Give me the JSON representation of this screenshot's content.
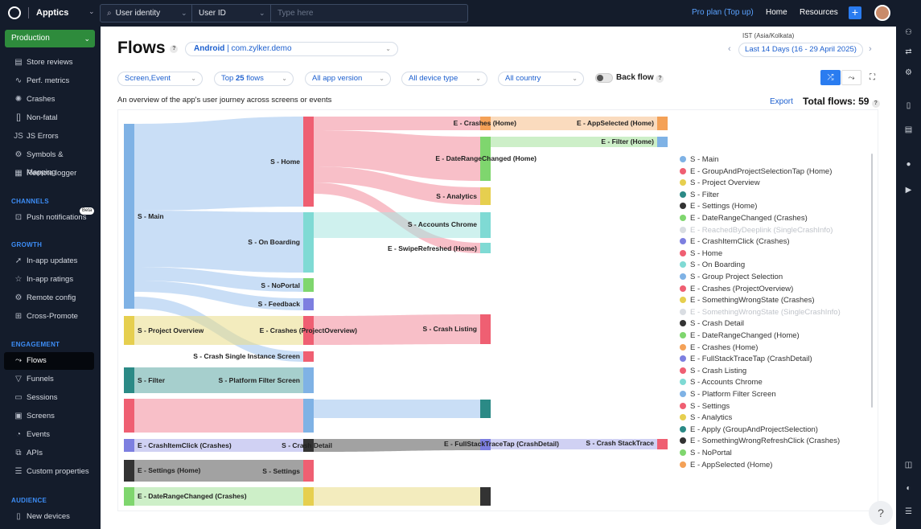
{
  "topbar": {
    "app_name": "Apptics",
    "search": {
      "filter1": "User identity",
      "filter2": "User ID",
      "placeholder": "Type here"
    },
    "plan_label": "Pro plan",
    "top_up": "Top up",
    "nav_home": "Home",
    "nav_resources": "Resources"
  },
  "sidebar": {
    "environment": "Production",
    "items_top": [
      {
        "label": "Store reviews",
        "icon": "store-icon"
      },
      {
        "label": "Perf. metrics",
        "icon": "perf-icon"
      },
      {
        "label": "Crashes",
        "icon": "crash-icon"
      },
      {
        "label": "Non-fatal",
        "icon": "nonfatal-icon"
      },
      {
        "label": "JS Errors",
        "icon": "js-icon"
      },
      {
        "label": "Symbols & Mapping",
        "icon": "symbols-icon"
      },
      {
        "label": "Remote logger",
        "icon": "logger-icon"
      }
    ],
    "channels_header": "CHANNELS",
    "push_label": "Push notifications",
    "beta": "Beta",
    "growth_header": "GROWTH",
    "growth_items": [
      "In-app updates",
      "In-app ratings",
      "Remote config",
      "Cross-Promote"
    ],
    "engagement_header": "ENGAGEMENT",
    "engagement_items": [
      "Flows",
      "Funnels",
      "Sessions",
      "Screens",
      "Events",
      "APIs",
      "Custom properties"
    ],
    "audience_header": "AUDIENCE",
    "audience_items": [
      "New devices"
    ]
  },
  "main": {
    "title": "Flows",
    "app_selector": {
      "platform": "Android",
      "bundle": "com.zylker.demo"
    },
    "timezone": "IST (Asia/Kolkata)",
    "date_range": "Last 14 Days (16 - 29 April 2025)",
    "filters": {
      "type": "Screen,Event",
      "top_prefix": "Top",
      "top_count": "25",
      "top_suffix": "flows",
      "app_version": "All app version",
      "device_type": "All device type",
      "country": "All country"
    },
    "back_flow": "Back flow",
    "caption": "An overview of the app's user journey across screens or events",
    "export": "Export",
    "total_flows": "Total flows: 59"
  },
  "colors": {
    "accent": "#1c5fcf",
    "primary_button": "#2a7cf0",
    "production": "#2e8b3c",
    "sidebar_bg": "#141c2b"
  },
  "sankey_labels": {
    "main": "S - Main",
    "project_overview": "S - Project Overview",
    "filter": "S - Filter",
    "crash_item_click": "E - CrashItemClick (Crashes)",
    "settings_home": "E - Settings (Home)",
    "date_range_crashes": "E - DateRangeChanged (Crashes)",
    "home": "S - Home",
    "on_boarding": "S - On Boarding",
    "no_portal": "S - NoPortal",
    "feedback": "S - Feedback",
    "crashes_project_overview": "E - Crashes (ProjectOverview)",
    "crash_single": "S - Crash Single Instance Screen",
    "platform_filter": "S - Platform Filter Screen",
    "crash_detail": "S - Crash Detail",
    "settings": "S - Settings",
    "crashes_home": "E - Crashes (Home)",
    "date_range_home": "E - DateRangeChanged (Home)",
    "analytics": "S - Analytics",
    "accounts_chrome": "S - Accounts Chrome",
    "swipe_refreshed": "E - SwipeRefreshed (Home)",
    "crash_listing": "S - Crash Listing",
    "full_stack": "E - FullStackTraceTap (CrashDetail)",
    "app_selected": "E - AppSelected (Home)",
    "filter_home": "E - Filter (Home)",
    "crash_stacktrace": "S - Crash StackTrace"
  },
  "legend": [
    {
      "label": "S - Main",
      "color": "#7fb2e5"
    },
    {
      "label": "E - GroupAndProjectSelectionTap (Home)",
      "color": "#ef5f72"
    },
    {
      "label": "S - Project Overview",
      "color": "#e6cf4f"
    },
    {
      "label": "S - Filter",
      "color": "#2b8a86"
    },
    {
      "label": "E - Settings (Home)",
      "color": "#333333"
    },
    {
      "label": "E - DateRangeChanged (Crashes)",
      "color": "#7fd66e"
    },
    {
      "label": "E - ReachedByDeeplink (SingleCrashInfo)",
      "color": "#a4e29b",
      "dim": true
    },
    {
      "label": "E - CrashItemClick (Crashes)",
      "color": "#7d7fe0"
    },
    {
      "label": "S - Home",
      "color": "#ef5f72"
    },
    {
      "label": "S - On Boarding",
      "color": "#7fdad4"
    },
    {
      "label": "S - Group Project Selection",
      "color": "#7fb2e5"
    },
    {
      "label": "E - Crashes (ProjectOverview)",
      "color": "#ef5f72"
    },
    {
      "label": "E - SomethingWrongState (Crashes)",
      "color": "#e6cf4f"
    },
    {
      "label": "E - SomethingWrongState (SingleCrashInfo)",
      "color": "#d6d6d6",
      "dim": true
    },
    {
      "label": "S - Crash Detail",
      "color": "#333333"
    },
    {
      "label": "E - DateRangeChanged (Home)",
      "color": "#7fd66e"
    },
    {
      "label": "E - Crashes (Home)",
      "color": "#f4a157"
    },
    {
      "label": "E - FullStackTraceTap (CrashDetail)",
      "color": "#7d7fe0"
    },
    {
      "label": "S - Crash Listing",
      "color": "#ef5f72"
    },
    {
      "label": "S - Accounts Chrome",
      "color": "#7fdad4"
    },
    {
      "label": "S - Platform Filter Screen",
      "color": "#7fb2e5"
    },
    {
      "label": "S - Settings",
      "color": "#ef5f72"
    },
    {
      "label": "S - Analytics",
      "color": "#e6cf4f"
    },
    {
      "label": "E - Apply (GroupAndProjectSelection)",
      "color": "#2b8a86"
    },
    {
      "label": "E - SomethingWrongRefreshClick (Crashes)",
      "color": "#333333"
    },
    {
      "label": "S - NoPortal",
      "color": "#7fd66e"
    },
    {
      "label": "E - AppSelected (Home)",
      "color": "#f4a157"
    }
  ]
}
